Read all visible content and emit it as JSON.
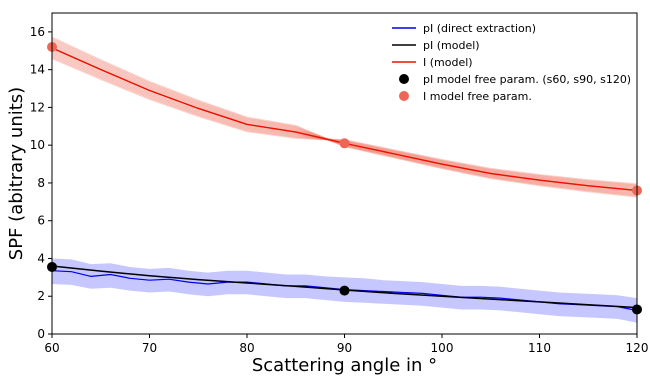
{
  "chart_data": {
    "type": "line",
    "xlabel": "Scattering angle in °",
    "ylabel": "SPF (abitrary units)",
    "xlim": [
      60,
      120
    ],
    "ylim": [
      0,
      17
    ],
    "xticks": [
      "60",
      "70",
      "80",
      "90",
      "100",
      "110",
      "120"
    ],
    "yticks": [
      "0",
      "2",
      "4",
      "6",
      "8",
      "10",
      "12",
      "14",
      "16"
    ],
    "grid": false,
    "legend_placement": "top-right",
    "legend": [
      {
        "label": "pI (direct extraction)",
        "marker": "line",
        "color": "#0000ee"
      },
      {
        "label": "pI (model)",
        "marker": "line",
        "color": "#000000"
      },
      {
        "label": "I (model)",
        "marker": "line",
        "color": "#ee1100"
      },
      {
        "label": "pI model free param. (s60, s90, s120)",
        "marker": "dot",
        "color": "#000000"
      },
      {
        "label": "I model free param.",
        "marker": "dot",
        "color": "#ee6655"
      }
    ],
    "series": [
      {
        "name": "pI (direct extraction)",
        "color": "#0000ee",
        "band_color": "#9999ff",
        "x": [
          60,
          62,
          64,
          66,
          68,
          70,
          72,
          74,
          76,
          78,
          80,
          82,
          84,
          86,
          88,
          90,
          92,
          94,
          96,
          98,
          100,
          102,
          104,
          106,
          108,
          110,
          112,
          114,
          116,
          118,
          120
        ],
        "y": [
          3.35,
          3.3,
          3.05,
          3.15,
          2.95,
          2.85,
          2.9,
          2.75,
          2.65,
          2.75,
          2.75,
          2.65,
          2.55,
          2.55,
          2.45,
          2.35,
          2.3,
          2.25,
          2.2,
          2.15,
          2.05,
          1.95,
          1.95,
          1.9,
          1.8,
          1.7,
          1.6,
          1.55,
          1.5,
          1.45,
          1.25
        ],
        "y_upper": [
          4.0,
          3.95,
          3.7,
          3.75,
          3.55,
          3.45,
          3.5,
          3.35,
          3.25,
          3.35,
          3.35,
          3.25,
          3.15,
          3.15,
          3.05,
          3.0,
          2.95,
          2.85,
          2.8,
          2.75,
          2.65,
          2.55,
          2.55,
          2.5,
          2.4,
          2.3,
          2.2,
          2.15,
          2.1,
          2.05,
          1.9
        ],
        "y_lower": [
          2.65,
          2.6,
          2.4,
          2.45,
          2.3,
          2.2,
          2.25,
          2.1,
          2.0,
          2.1,
          2.1,
          2.0,
          1.9,
          1.9,
          1.8,
          1.7,
          1.65,
          1.6,
          1.55,
          1.5,
          1.4,
          1.3,
          1.3,
          1.25,
          1.15,
          1.05,
          0.95,
          0.9,
          0.85,
          0.8,
          0.6
        ]
      },
      {
        "name": "pI (model)",
        "color": "#000000",
        "x": [
          60,
          65,
          70,
          75,
          80,
          85,
          90,
          95,
          100,
          105,
          110,
          115,
          120
        ],
        "y": [
          3.6,
          3.33,
          3.08,
          2.88,
          2.7,
          2.52,
          2.33,
          2.15,
          2.0,
          1.85,
          1.7,
          1.55,
          1.4
        ]
      },
      {
        "name": "I (model)",
        "color": "#ee1100",
        "band_color": "#f08070",
        "x": [
          60,
          65,
          70,
          75,
          80,
          85,
          90,
          95,
          100,
          105,
          110,
          115,
          120
        ],
        "y": [
          15.15,
          14.0,
          12.9,
          11.95,
          11.1,
          10.7,
          10.1,
          9.55,
          9.0,
          8.5,
          8.15,
          7.85,
          7.6
        ]
      }
    ],
    "free_params": {
      "pI": {
        "color": "#000000",
        "x": [
          60,
          90,
          120
        ],
        "y": [
          3.55,
          2.3,
          1.3
        ]
      },
      "I": {
        "color": "#ee6655",
        "x": [
          60,
          90,
          120
        ],
        "y": [
          15.2,
          10.1,
          7.6
        ]
      }
    }
  }
}
